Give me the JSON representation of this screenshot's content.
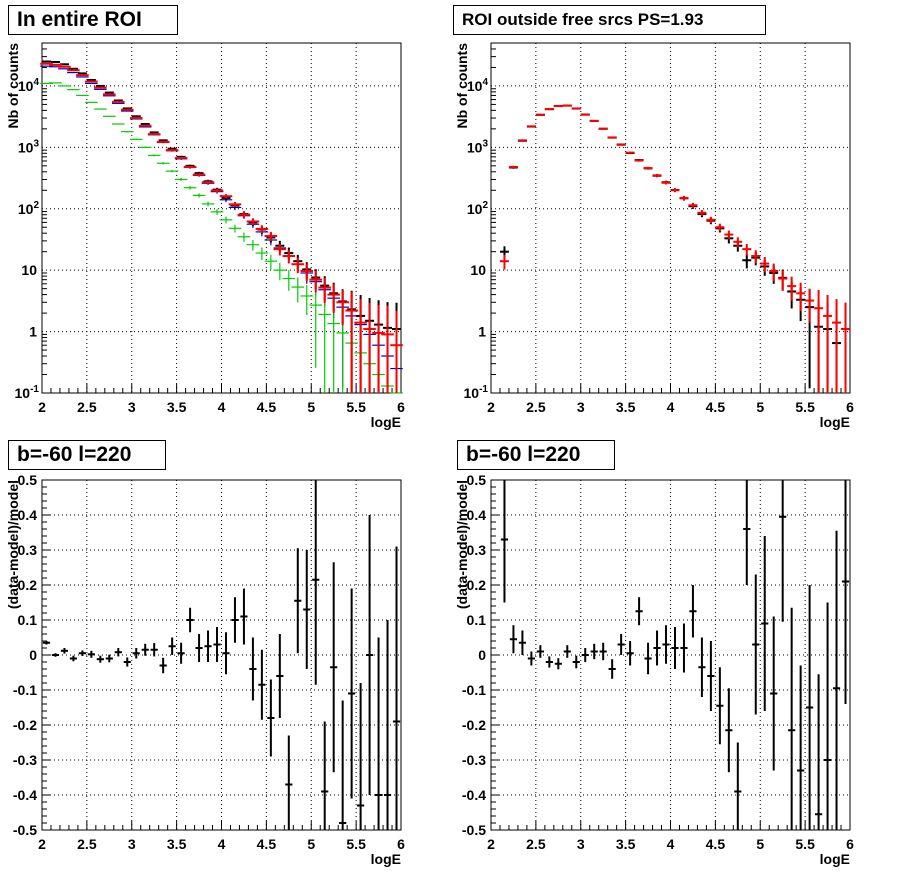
{
  "colors": {
    "data": "#000000",
    "model_total": "#ff0000",
    "model_blue": "#0000cc",
    "model_green": "#00cc00"
  },
  "chart_data": [
    {
      "type": "scatter",
      "title": "In entire ROI",
      "xlabel": "logE",
      "ylabel": "Nb of counts",
      "xlim": [
        2,
        6
      ],
      "ylim": [
        0.1,
        50000
      ],
      "log_y": true,
      "grid": true,
      "x_ticks": [
        "2",
        "2.5",
        "3",
        "3.5",
        "4",
        "4.5",
        "5",
        "5.5",
        "6"
      ],
      "y_ticks": [
        "10^-1",
        "1",
        "10",
        "10^2",
        "10^3",
        "10^4"
      ],
      "x": [
        2.05,
        2.15,
        2.25,
        2.35,
        2.45,
        2.55,
        2.65,
        2.75,
        2.85,
        2.95,
        3.05,
        3.15,
        3.25,
        3.35,
        3.45,
        3.55,
        3.65,
        3.75,
        3.85,
        3.95,
        4.05,
        4.15,
        4.25,
        4.35,
        4.45,
        4.55,
        4.65,
        4.75,
        4.85,
        4.95,
        5.05,
        5.15,
        5.25,
        5.35,
        5.45,
        5.55,
        5.65,
        5.75,
        5.85,
        5.95
      ],
      "series": [
        {
          "values": [
            25000,
            24500,
            22500,
            19000,
            16000,
            12500,
            10000,
            7800,
            5800,
            4300,
            3200,
            2400,
            1750,
            1300,
            950,
            700,
            500,
            380,
            280,
            205,
            150,
            113,
            82,
            60,
            46,
            34,
            25,
            19,
            14,
            10.3,
            7.6,
            5.6,
            4.2,
            3.1,
            2.3,
            1.8,
            1.5,
            1.3,
            1.15,
            1.1
          ]
        },
        {
          "values": [
            21000,
            20500,
            19000,
            16500,
            14000,
            11000,
            8800,
            6900,
            5200,
            3900,
            2900,
            2150,
            1600,
            1200,
            880,
            650,
            470,
            350,
            260,
            190,
            140,
            105,
            77,
            56,
            42,
            31,
            23,
            17,
            12.5,
            9,
            6.5,
            4.8,
            3.5,
            2.5,
            1.8,
            1.3,
            0.9,
            0.6,
            0.4,
            0.25
          ]
        },
        {
          "values": [
            11000,
            11200,
            10000,
            8700,
            7000,
            5400,
            4200,
            3200,
            2400,
            1800,
            1350,
            1000,
            740,
            550,
            410,
            300,
            220,
            165,
            120,
            89,
            66,
            48,
            35,
            26,
            19,
            14,
            10,
            7.3,
            5.3,
            3.8,
            2.7,
            1.9,
            1.35,
            0.95,
            0.65,
            0.45,
            0.3,
            0.2,
            0.13,
            0.1
          ]
        },
        {
          "values": [
            23000,
            22000,
            20500,
            18000,
            15000,
            11800,
            9400,
            7300,
            5500,
            4100,
            3000,
            2250,
            1640,
            1230,
            900,
            670,
            480,
            360,
            270,
            198,
            160,
            118,
            80,
            62,
            47,
            36,
            22,
            17,
            12.5,
            9.7,
            7,
            5.2,
            4,
            3,
            2.2,
            1.4,
            1.1,
            0.95,
            0.9,
            0.6
          ]
        }
      ]
    },
    {
      "type": "scatter",
      "title": "ROI outside free srcs PS=1.93",
      "xlabel": "logE",
      "ylabel": "Nb of counts",
      "xlim": [
        2,
        6
      ],
      "ylim": [
        0.1,
        50000
      ],
      "log_y": true,
      "grid": true,
      "x_ticks": [
        "2",
        "2.5",
        "3",
        "3.5",
        "4",
        "4.5",
        "5",
        "5.5",
        "6"
      ],
      "y_ticks": [
        "10^-1",
        "1",
        "10",
        "10^2",
        "10^3",
        "10^4"
      ],
      "x": [
        2.15,
        2.25,
        2.35,
        2.45,
        2.55,
        2.65,
        2.75,
        2.85,
        2.95,
        3.05,
        3.15,
        3.25,
        3.35,
        3.45,
        3.55,
        3.65,
        3.75,
        3.85,
        3.95,
        4.05,
        4.15,
        4.25,
        4.35,
        4.45,
        4.55,
        4.65,
        4.75,
        4.85,
        4.95,
        5.05,
        5.15,
        5.25,
        5.35,
        5.45,
        5.55,
        5.65,
        5.75,
        5.85,
        5.95
      ],
      "series": [
        {
          "values": [
            14,
            480,
            1300,
            2200,
            3400,
            4200,
            4700,
            4800,
            4300,
            3400,
            2700,
            2000,
            1450,
            1100,
            820,
            610,
            460,
            350,
            265,
            200,
            150,
            114,
            86,
            66,
            50,
            38,
            29,
            22,
            17,
            12.8,
            9.7,
            7.3,
            5.5,
            4.2,
            3.2,
            2.4,
            1.8,
            1.4,
            1.1
          ]
        },
        {
          "values": [
            20,
            470,
            1280,
            2180,
            3380,
            4180,
            4720,
            4780,
            4280,
            3420,
            2690,
            2010,
            1440,
            1110,
            810,
            620,
            455,
            345,
            270,
            202,
            148,
            110,
            82,
            64,
            48,
            33,
            25,
            14.5,
            16,
            11.5,
            9,
            7.5,
            4.5,
            3.3,
            2.5,
            1.2,
            1.1,
            0.65,
            1.1
          ]
        }
      ]
    },
    {
      "type": "scatter",
      "title": "b=-60 l=220",
      "xlabel": "logE",
      "ylabel": "(data-model)/model",
      "xlim": [
        2,
        6
      ],
      "ylim": [
        -0.5,
        0.5
      ],
      "grid": true,
      "x_ticks": [
        "2",
        "2.5",
        "3",
        "3.5",
        "4",
        "4.5",
        "5",
        "5.5",
        "6"
      ],
      "y_ticks": [
        "-0.5",
        "-0.4",
        "-0.3",
        "-0.2",
        "-0.1",
        "0",
        "0.1",
        "0.2",
        "0.3",
        "0.4",
        "0.5"
      ],
      "x": [
        2.05,
        2.15,
        2.25,
        2.35,
        2.45,
        2.55,
        2.65,
        2.75,
        2.85,
        2.95,
        3.05,
        3.15,
        3.25,
        3.35,
        3.45,
        3.55,
        3.65,
        3.75,
        3.85,
        3.95,
        4.05,
        4.15,
        4.25,
        4.35,
        4.45,
        4.55,
        4.65,
        4.75,
        4.85,
        4.95,
        5.05,
        5.15,
        5.25,
        5.35,
        5.45,
        5.55,
        5.65,
        5.75,
        5.85,
        5.95
      ],
      "series": [
        {
          "values": [
            0.035,
            0,
            0.012,
            -0.01,
            0.005,
            0.002,
            -0.012,
            -0.01,
            0.008,
            -0.02,
            0.005,
            0.015,
            0.015,
            -0.03,
            0.025,
            0.005,
            0.1,
            0.02,
            0.025,
            0.03,
            0.005,
            0.1,
            0.11,
            -0.04,
            -0.085,
            -0.18,
            -0.06,
            -0.37,
            0.155,
            0.13,
            0.215,
            -0.39,
            -0.035,
            -0.48,
            -0.11,
            -0.43,
            0,
            -0.4,
            -0.4,
            -0.19
          ]
        },
        {
          "values": [
            0.005,
            0.005,
            0.008,
            0.008,
            0.008,
            0.01,
            0.01,
            0.011,
            0.012,
            0.013,
            0.015,
            0.017,
            0.019,
            0.022,
            0.025,
            0.03,
            0.035,
            0.04,
            0.045,
            0.05,
            0.06,
            0.065,
            0.08,
            0.09,
            0.1,
            0.11,
            0.12,
            0.14,
            0.15,
            0.17,
            0.3,
            0.2,
            0.3,
            0.35,
            0.3,
            0.35,
            0.4,
            0.45,
            0.5,
            0.5
          ]
        }
      ]
    },
    {
      "type": "scatter",
      "title": "b=-60 l=220",
      "xlabel": "logE",
      "ylabel": "(data-model)/model",
      "xlim": [
        2,
        6
      ],
      "ylim": [
        -0.5,
        0.5
      ],
      "grid": true,
      "x_ticks": [
        "2",
        "2.5",
        "3",
        "3.5",
        "4",
        "4.5",
        "5",
        "5.5",
        "6"
      ],
      "y_ticks": [
        "-0.5",
        "-0.4",
        "-0.3",
        "-0.2",
        "-0.1",
        "0",
        "0.1",
        "0.2",
        "0.3",
        "0.4",
        "0.5"
      ],
      "x": [
        2.15,
        2.25,
        2.35,
        2.45,
        2.55,
        2.65,
        2.75,
        2.85,
        2.95,
        3.05,
        3.15,
        3.25,
        3.35,
        3.45,
        3.55,
        3.65,
        3.75,
        3.85,
        3.95,
        4.05,
        4.15,
        4.25,
        4.35,
        4.45,
        4.55,
        4.65,
        4.75,
        4.85,
        4.95,
        5.05,
        5.15,
        5.25,
        5.35,
        5.45,
        5.55,
        5.65,
        5.75,
        5.85,
        5.95
      ],
      "series": [
        {
          "values": [
            0.33,
            0.045,
            0.035,
            -0.01,
            0.01,
            -0.02,
            -0.025,
            0.01,
            -0.02,
            0,
            0.01,
            0.01,
            -0.04,
            0.03,
            0.005,
            0.125,
            -0.01,
            0.02,
            0.03,
            0.02,
            0.02,
            0.125,
            -0.035,
            -0.06,
            -0.145,
            -0.215,
            -0.39,
            0.36,
            0.03,
            0.09,
            -0.11,
            0.395,
            -0.215,
            -0.33,
            -0.15,
            -0.455,
            -0.3,
            -0.095,
            0.21
          ]
        },
        {
          "values": [
            0.18,
            0.04,
            0.035,
            0.02,
            0.018,
            0.016,
            0.016,
            0.018,
            0.018,
            0.02,
            0.022,
            0.025,
            0.028,
            0.03,
            0.035,
            0.04,
            0.045,
            0.05,
            0.055,
            0.06,
            0.07,
            0.075,
            0.085,
            0.1,
            0.11,
            0.12,
            0.14,
            0.16,
            0.2,
            0.25,
            0.22,
            0.3,
            0.35,
            0.3,
            0.35,
            0.4,
            0.45,
            0.45,
            0.35
          ]
        }
      ]
    }
  ]
}
